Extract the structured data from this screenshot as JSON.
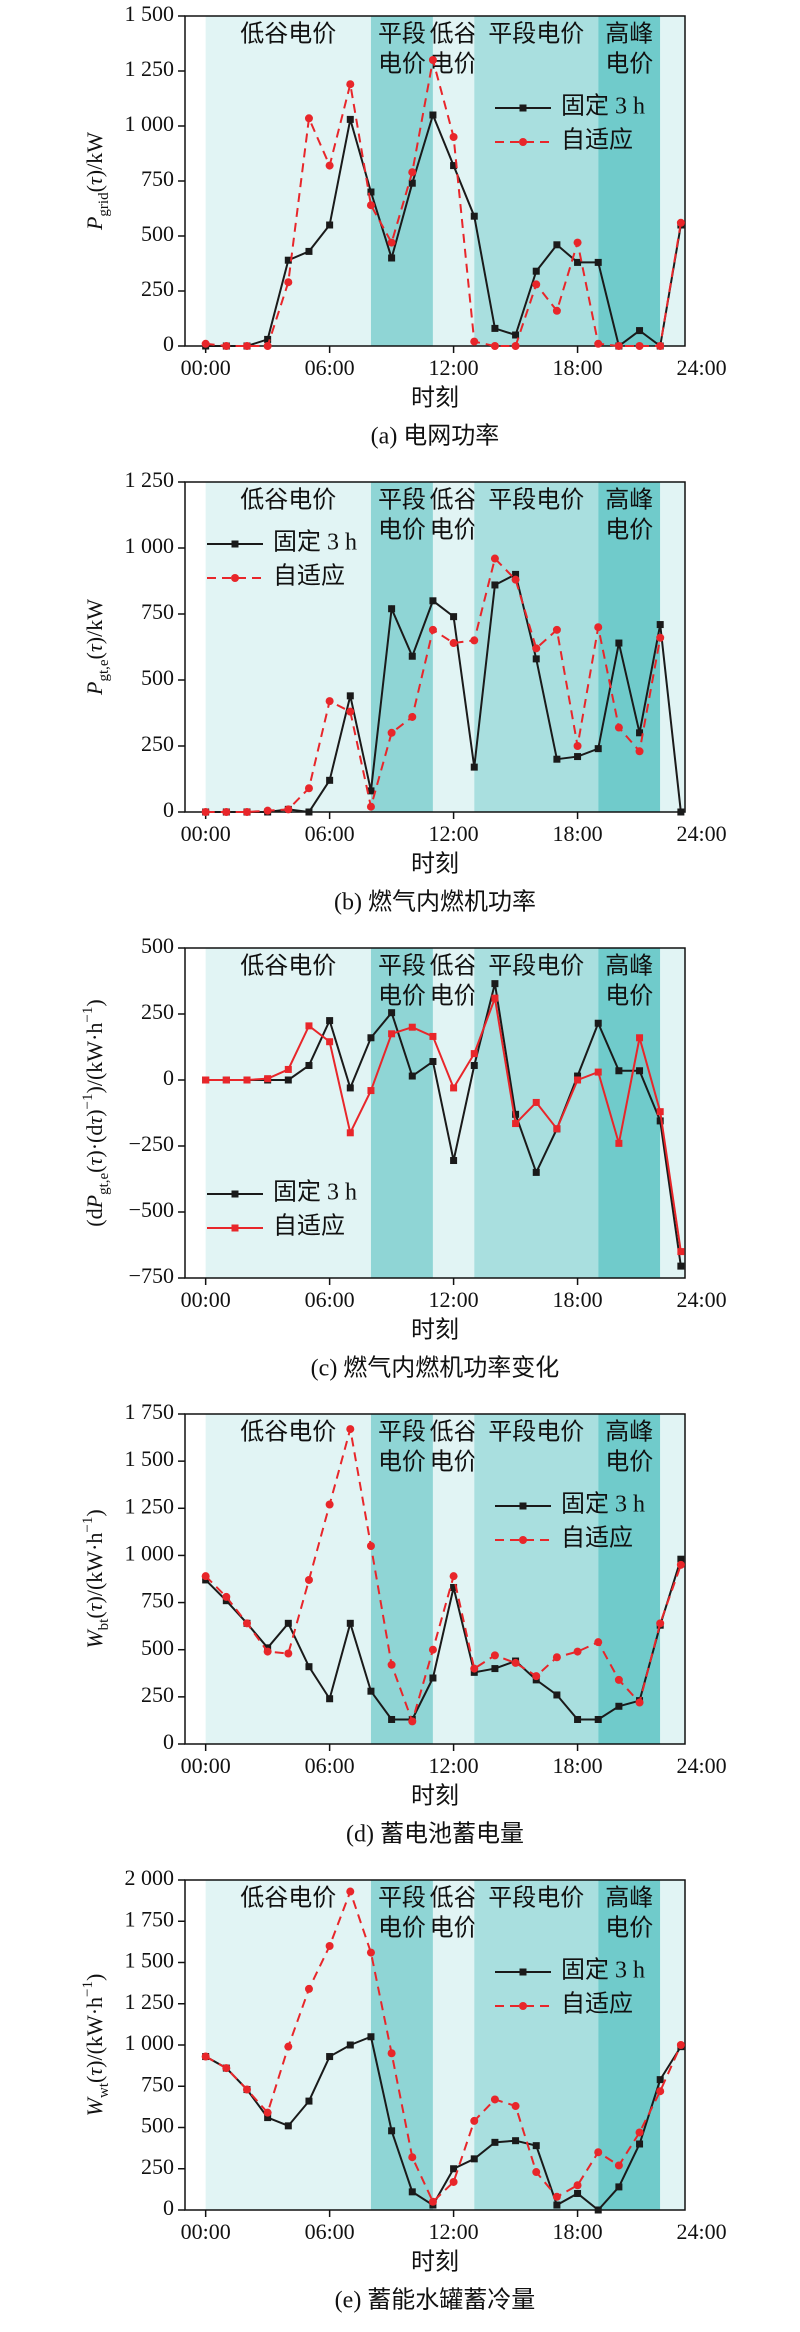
{
  "periods": [
    {
      "start": 0,
      "end": 8,
      "label": [
        "低谷电价"
      ],
      "color": "#e1f4f4"
    },
    {
      "start": 8,
      "end": 11,
      "label": [
        "平段",
        "电价"
      ],
      "color": "#8fd5d5"
    },
    {
      "start": 11,
      "end": 13,
      "label": [
        "低谷",
        "电价"
      ],
      "color": "#e1f4f4"
    },
    {
      "start": 13,
      "end": 19,
      "label": [
        "平段电价"
      ],
      "color": "#a9dfdf"
    },
    {
      "start": 19,
      "end": 22,
      "label": [
        "高峰",
        "电价"
      ],
      "color": "#70cbcb"
    },
    {
      "start": 22,
      "end": 24,
      "color": "#e1f4f4"
    }
  ],
  "chart_data": [
    {
      "type": "line",
      "caption": "(a) 电网功率",
      "xlabel": "时刻",
      "ylabel": [
        {
          "text": "P",
          "italic": true
        },
        {
          "text": "grid",
          "sub": true
        },
        {
          "text": "("
        },
        {
          "text": "τ",
          "italic": true
        },
        {
          "text": ")/kW"
        }
      ],
      "x": [
        0,
        1,
        2,
        3,
        4,
        5,
        6,
        7,
        8,
        9,
        10,
        11,
        12,
        13,
        14,
        15,
        16,
        17,
        18,
        19,
        20,
        21,
        22,
        23
      ],
      "xlim": [
        -1,
        23.2
      ],
      "xticks": [
        {
          "value": 0,
          "label": "00:00"
        },
        {
          "value": 6,
          "label": "06:00"
        },
        {
          "value": 12,
          "label": "12:00"
        },
        {
          "value": 18,
          "label": "18:00"
        },
        {
          "value": 24,
          "label": "24:00"
        }
      ],
      "ylim": [
        0,
        1500
      ],
      "yticks": [
        0,
        250,
        500,
        750,
        {
          "value": 1000,
          "label": "1 000"
        },
        {
          "value": 1250,
          "label": "1 250"
        },
        {
          "value": 1500,
          "label": "1 500"
        }
      ],
      "legend": "upper right",
      "series": [
        {
          "name": "固定 3 h",
          "color": "#1a1a1a",
          "dash": false,
          "marker": "square",
          "values": [
            0,
            0,
            0,
            30,
            390,
            430,
            550,
            1030,
            700,
            400,
            740,
            1050,
            820,
            590,
            80,
            50,
            340,
            460,
            380,
            380,
            0,
            70,
            0,
            550
          ]
        },
        {
          "name": "自适应",
          "color": "#e8262a",
          "dash": true,
          "marker": "circle",
          "values": [
            10,
            0,
            0,
            0,
            290,
            1035,
            820,
            1190,
            640,
            470,
            790,
            1300,
            950,
            20,
            0,
            0,
            280,
            160,
            470,
            10,
            0,
            0,
            0,
            560
          ]
        }
      ]
    },
    {
      "type": "line",
      "caption": "(b) 燃气内燃机功率",
      "xlabel": "时刻",
      "ylabel": [
        {
          "text": "P",
          "italic": true
        },
        {
          "text": "gt,e",
          "sub": true
        },
        {
          "text": "("
        },
        {
          "text": "τ",
          "italic": true
        },
        {
          "text": ")/kW"
        }
      ],
      "x": [
        0,
        1,
        2,
        3,
        4,
        5,
        6,
        7,
        8,
        9,
        10,
        11,
        12,
        13,
        14,
        15,
        16,
        17,
        18,
        19,
        20,
        21,
        22,
        23
      ],
      "xlim": [
        -1,
        23.2
      ],
      "xticks": [
        {
          "value": 0,
          "label": "00:00"
        },
        {
          "value": 6,
          "label": "06:00"
        },
        {
          "value": 12,
          "label": "12:00"
        },
        {
          "value": 18,
          "label": "18:00"
        },
        {
          "value": 24,
          "label": "24:00"
        }
      ],
      "ylim": [
        0,
        1250
      ],
      "yticks": [
        0,
        250,
        500,
        750,
        {
          "value": 1000,
          "label": "1 000"
        },
        {
          "value": 1250,
          "label": "1 250"
        }
      ],
      "legend": "upper left",
      "series": [
        {
          "name": "固定 3 h",
          "color": "#1a1a1a",
          "dash": false,
          "marker": "square",
          "values": [
            0,
            0,
            0,
            0,
            10,
            0,
            120,
            440,
            80,
            770,
            590,
            800,
            740,
            170,
            860,
            900,
            580,
            200,
            210,
            240,
            640,
            300,
            710,
            0
          ]
        },
        {
          "name": "自适应",
          "color": "#e8262a",
          "dash": true,
          "marker": "circle",
          "values": [
            0,
            0,
            0,
            5,
            10,
            90,
            420,
            380,
            20,
            300,
            360,
            690,
            640,
            650,
            960,
            880,
            620,
            690,
            250,
            700,
            320,
            230,
            660,
            null
          ]
        }
      ]
    },
    {
      "type": "line",
      "caption": "(c) 燃气内燃机功率变化",
      "xlabel": "时刻",
      "ylabel": [
        {
          "text": "(d"
        },
        {
          "text": "P",
          "italic": true
        },
        {
          "text": "gt,e",
          "sub": true
        },
        {
          "text": "("
        },
        {
          "text": "τ",
          "italic": true
        },
        {
          "text": ")·(d"
        },
        {
          "text": "τ",
          "italic": true
        },
        {
          "text": ")"
        },
        {
          "text": "−1",
          "sup": true
        },
        {
          "text": ")/(kW·h"
        },
        {
          "text": "−1",
          "sup": true
        },
        {
          "text": ")"
        }
      ],
      "x": [
        0,
        1,
        2,
        3,
        4,
        5,
        6,
        7,
        8,
        9,
        10,
        11,
        12,
        13,
        14,
        15,
        16,
        17,
        18,
        19,
        20,
        21,
        22,
        23
      ],
      "xlim": [
        -1,
        23.2
      ],
      "xticks": [
        {
          "value": 0,
          "label": "00:00"
        },
        {
          "value": 6,
          "label": "06:00"
        },
        {
          "value": 12,
          "label": "12:00"
        },
        {
          "value": 18,
          "label": "18:00"
        },
        {
          "value": 24,
          "label": "24:00"
        }
      ],
      "ylim": [
        -750,
        500
      ],
      "yticks": [
        {
          "value": -750,
          "label": "−750"
        },
        {
          "value": -500,
          "label": "−500"
        },
        {
          "value": -250,
          "label": "−250"
        },
        0,
        250,
        500
      ],
      "legend": "lower left",
      "series": [
        {
          "name": "固定 3 h",
          "color": "#1a1a1a",
          "dash": false,
          "marker": "square",
          "values": [
            0,
            0,
            0,
            0,
            0,
            55,
            225,
            -30,
            160,
            255,
            15,
            70,
            -305,
            55,
            365,
            -130,
            -350,
            -185,
            15,
            215,
            35,
            35,
            -155,
            -705
          ]
        },
        {
          "name": "自适应",
          "color": "#e8262a",
          "dash": false,
          "marker": "square",
          "values": [
            0,
            0,
            0,
            5,
            40,
            205,
            145,
            -200,
            -40,
            175,
            200,
            165,
            -30,
            100,
            310,
            -165,
            -85,
            -185,
            0,
            30,
            -240,
            160,
            -120,
            -650
          ]
        }
      ]
    },
    {
      "type": "line",
      "caption": "(d) 蓄电池蓄电量",
      "xlabel": "时刻",
      "ylabel": [
        {
          "text": "W",
          "italic": true
        },
        {
          "text": "bt",
          "sub": true
        },
        {
          "text": "("
        },
        {
          "text": "τ",
          "italic": true
        },
        {
          "text": ")/(kW·h"
        },
        {
          "text": "−1",
          "sup": true
        },
        {
          "text": ")"
        }
      ],
      "x": [
        0,
        1,
        2,
        3,
        4,
        5,
        6,
        7,
        8,
        9,
        10,
        11,
        12,
        13,
        14,
        15,
        16,
        17,
        18,
        19,
        20,
        21,
        22,
        23
      ],
      "xlim": [
        -1,
        23.2
      ],
      "xticks": [
        {
          "value": 0,
          "label": "00:00"
        },
        {
          "value": 6,
          "label": "06:00"
        },
        {
          "value": 12,
          "label": "12:00"
        },
        {
          "value": 18,
          "label": "18:00"
        },
        {
          "value": 24,
          "label": "24:00"
        }
      ],
      "ylim": [
        0,
        1750
      ],
      "yticks": [
        0,
        250,
        500,
        750,
        {
          "value": 1000,
          "label": "1 000"
        },
        {
          "value": 1250,
          "label": "1 250"
        },
        {
          "value": 1500,
          "label": "1 500"
        },
        {
          "value": 1750,
          "label": "1 750"
        }
      ],
      "legend": "upper right",
      "series": [
        {
          "name": "固定 3 h",
          "color": "#1a1a1a",
          "dash": false,
          "marker": "square",
          "values": [
            870,
            760,
            640,
            510,
            640,
            410,
            240,
            640,
            280,
            130,
            130,
            350,
            830,
            380,
            400,
            440,
            340,
            260,
            130,
            130,
            200,
            230,
            630,
            980
          ]
        },
        {
          "name": "自适应",
          "color": "#e8262a",
          "dash": true,
          "marker": "circle",
          "values": [
            890,
            780,
            640,
            490,
            480,
            870,
            1270,
            1670,
            1050,
            420,
            120,
            500,
            890,
            400,
            470,
            430,
            360,
            460,
            490,
            540,
            340,
            220,
            640,
            950
          ]
        }
      ]
    },
    {
      "type": "line",
      "caption": "(e) 蓄能水罐蓄冷量",
      "xlabel": "时刻",
      "ylabel": [
        {
          "text": "W",
          "italic": true
        },
        {
          "text": "wt",
          "sub": true
        },
        {
          "text": "("
        },
        {
          "text": "τ",
          "italic": true
        },
        {
          "text": ")/(kW·h"
        },
        {
          "text": "−1",
          "sup": true
        },
        {
          "text": ")"
        }
      ],
      "x": [
        0,
        1,
        2,
        3,
        4,
        5,
        6,
        7,
        8,
        9,
        10,
        11,
        12,
        13,
        14,
        15,
        16,
        17,
        18,
        19,
        20,
        21,
        22,
        23
      ],
      "xlim": [
        -1,
        23.2
      ],
      "xticks": [
        {
          "value": 0,
          "label": "00:00"
        },
        {
          "value": 6,
          "label": "06:00"
        },
        {
          "value": 12,
          "label": "12:00"
        },
        {
          "value": 18,
          "label": "18:00"
        },
        {
          "value": 24,
          "label": "24:00"
        }
      ],
      "ylim": [
        0,
        2000
      ],
      "yticks": [
        0,
        250,
        500,
        750,
        {
          "value": 1000,
          "label": "1 000"
        },
        {
          "value": 1250,
          "label": "1 250"
        },
        {
          "value": 1500,
          "label": "1 500"
        },
        {
          "value": 1750,
          "label": "1 750"
        },
        {
          "value": 2000,
          "label": "2 000"
        }
      ],
      "legend": "upper right",
      "series": [
        {
          "name": "固定 3 h",
          "color": "#1a1a1a",
          "dash": false,
          "marker": "square",
          "values": [
            930,
            860,
            730,
            560,
            510,
            660,
            930,
            1000,
            1050,
            480,
            110,
            30,
            250,
            310,
            410,
            420,
            390,
            30,
            100,
            0,
            140,
            400,
            790,
            990
          ]
        },
        {
          "name": "自适应",
          "color": "#e8262a",
          "dash": true,
          "marker": "circle",
          "values": [
            930,
            860,
            730,
            590,
            990,
            1340,
            1600,
            1930,
            1560,
            950,
            320,
            50,
            170,
            540,
            670,
            630,
            230,
            80,
            150,
            350,
            270,
            470,
            720,
            1000
          ]
        }
      ]
    }
  ]
}
